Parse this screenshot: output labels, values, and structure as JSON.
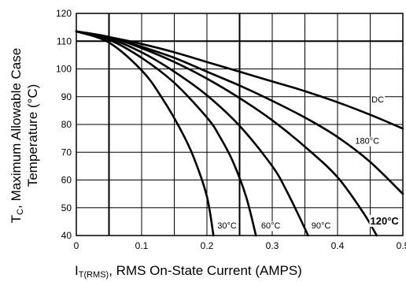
{
  "chart_data": {
    "type": "line",
    "title": "",
    "xlabel": {
      "symbol": "I",
      "subscript": "T(RMS)",
      "text": ", RMS On-State Current (AMPS)"
    },
    "ylabel": {
      "line1_symbol": "T",
      "line1_subscript": "C",
      "line1_text": ", Maximum Allowable Case",
      "line2": "Temperature (°C)"
    },
    "xlim": [
      0,
      0.5
    ],
    "ylim": [
      40,
      120
    ],
    "x_ticks": [
      "0",
      "0.1",
      "0.2",
      "0.3",
      "0.4",
      "0.5"
    ],
    "y_ticks": [
      "40",
      "50",
      "60",
      "70",
      "80",
      "90",
      "100",
      "110",
      "120"
    ],
    "grid": true,
    "series": [
      {
        "name": "DC",
        "label_style": "normal",
        "x": [
          0,
          0.05,
          0.1,
          0.15,
          0.2,
          0.25,
          0.3,
          0.35,
          0.4,
          0.45,
          0.5
        ],
        "y": [
          113.5,
          111.5,
          109,
          106,
          102.5,
          99,
          95.5,
          92,
          88,
          83.5,
          78.5
        ]
      },
      {
        "name": "180°C",
        "label_style": "normal",
        "x": [
          0,
          0.05,
          0.1,
          0.15,
          0.2,
          0.25,
          0.3,
          0.35,
          0.4,
          0.45,
          0.5
        ],
        "y": [
          113.5,
          111.5,
          108,
          104,
          99,
          94,
          88.5,
          82.5,
          75.5,
          66.5,
          55
        ]
      },
      {
        "name": "120°C",
        "label_style": "bold",
        "x": [
          0,
          0.05,
          0.1,
          0.15,
          0.2,
          0.25,
          0.3,
          0.35,
          0.4,
          0.44,
          0.46
        ],
        "y": [
          113.5,
          111.5,
          107.5,
          102.5,
          96.5,
          89.5,
          81.5,
          72,
          61,
          48,
          40
        ]
      },
      {
        "name": "90°C",
        "label_style": "normal",
        "x": [
          0,
          0.05,
          0.1,
          0.15,
          0.2,
          0.25,
          0.3,
          0.32,
          0.34,
          0.355
        ],
        "y": [
          113.5,
          111,
          106,
          99,
          90.5,
          79.5,
          65,
          57,
          47.5,
          40
        ]
      },
      {
        "name": "60°C",
        "label_style": "normal",
        "x": [
          0,
          0.05,
          0.1,
          0.15,
          0.2,
          0.22,
          0.24,
          0.26,
          0.275
        ],
        "y": [
          113.5,
          110.5,
          104,
          95,
          82.5,
          75.5,
          66.5,
          54,
          40
        ]
      },
      {
        "name": "30°C",
        "label_style": "normal",
        "x": [
          0,
          0.05,
          0.1,
          0.13,
          0.16,
          0.18,
          0.2,
          0.21
        ],
        "y": [
          113.5,
          109.5,
          99.5,
          90,
          78,
          68,
          54,
          40
        ]
      }
    ]
  }
}
